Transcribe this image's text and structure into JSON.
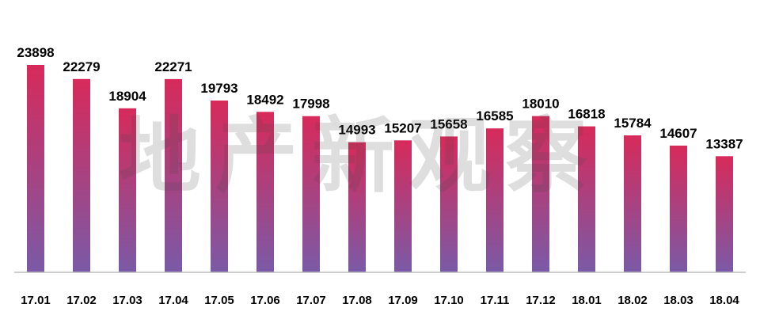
{
  "chart_data": {
    "type": "bar",
    "title": "",
    "xlabel": "",
    "ylabel": "",
    "ylim": [
      0,
      26000
    ],
    "grid": false,
    "legend": "none",
    "categories": [
      "17.01",
      "17.02",
      "17.03",
      "17.04",
      "17.05",
      "17.06",
      "17.07",
      "17.08",
      "17.09",
      "17.10",
      "17.11",
      "17.12",
      "18.01",
      "18.02",
      "18.03",
      "18.04"
    ],
    "values": [
      23898,
      22279,
      18904,
      22271,
      19793,
      18492,
      17998,
      14993,
      15207,
      15658,
      16585,
      18010,
      16818,
      15784,
      14607,
      13387
    ],
    "colors": {
      "bar_top": "#d72a5a",
      "bar_bottom": "#7a5aa6",
      "axis": "#bfbfbf",
      "label": "#000000"
    }
  },
  "watermark": "地产新观察"
}
